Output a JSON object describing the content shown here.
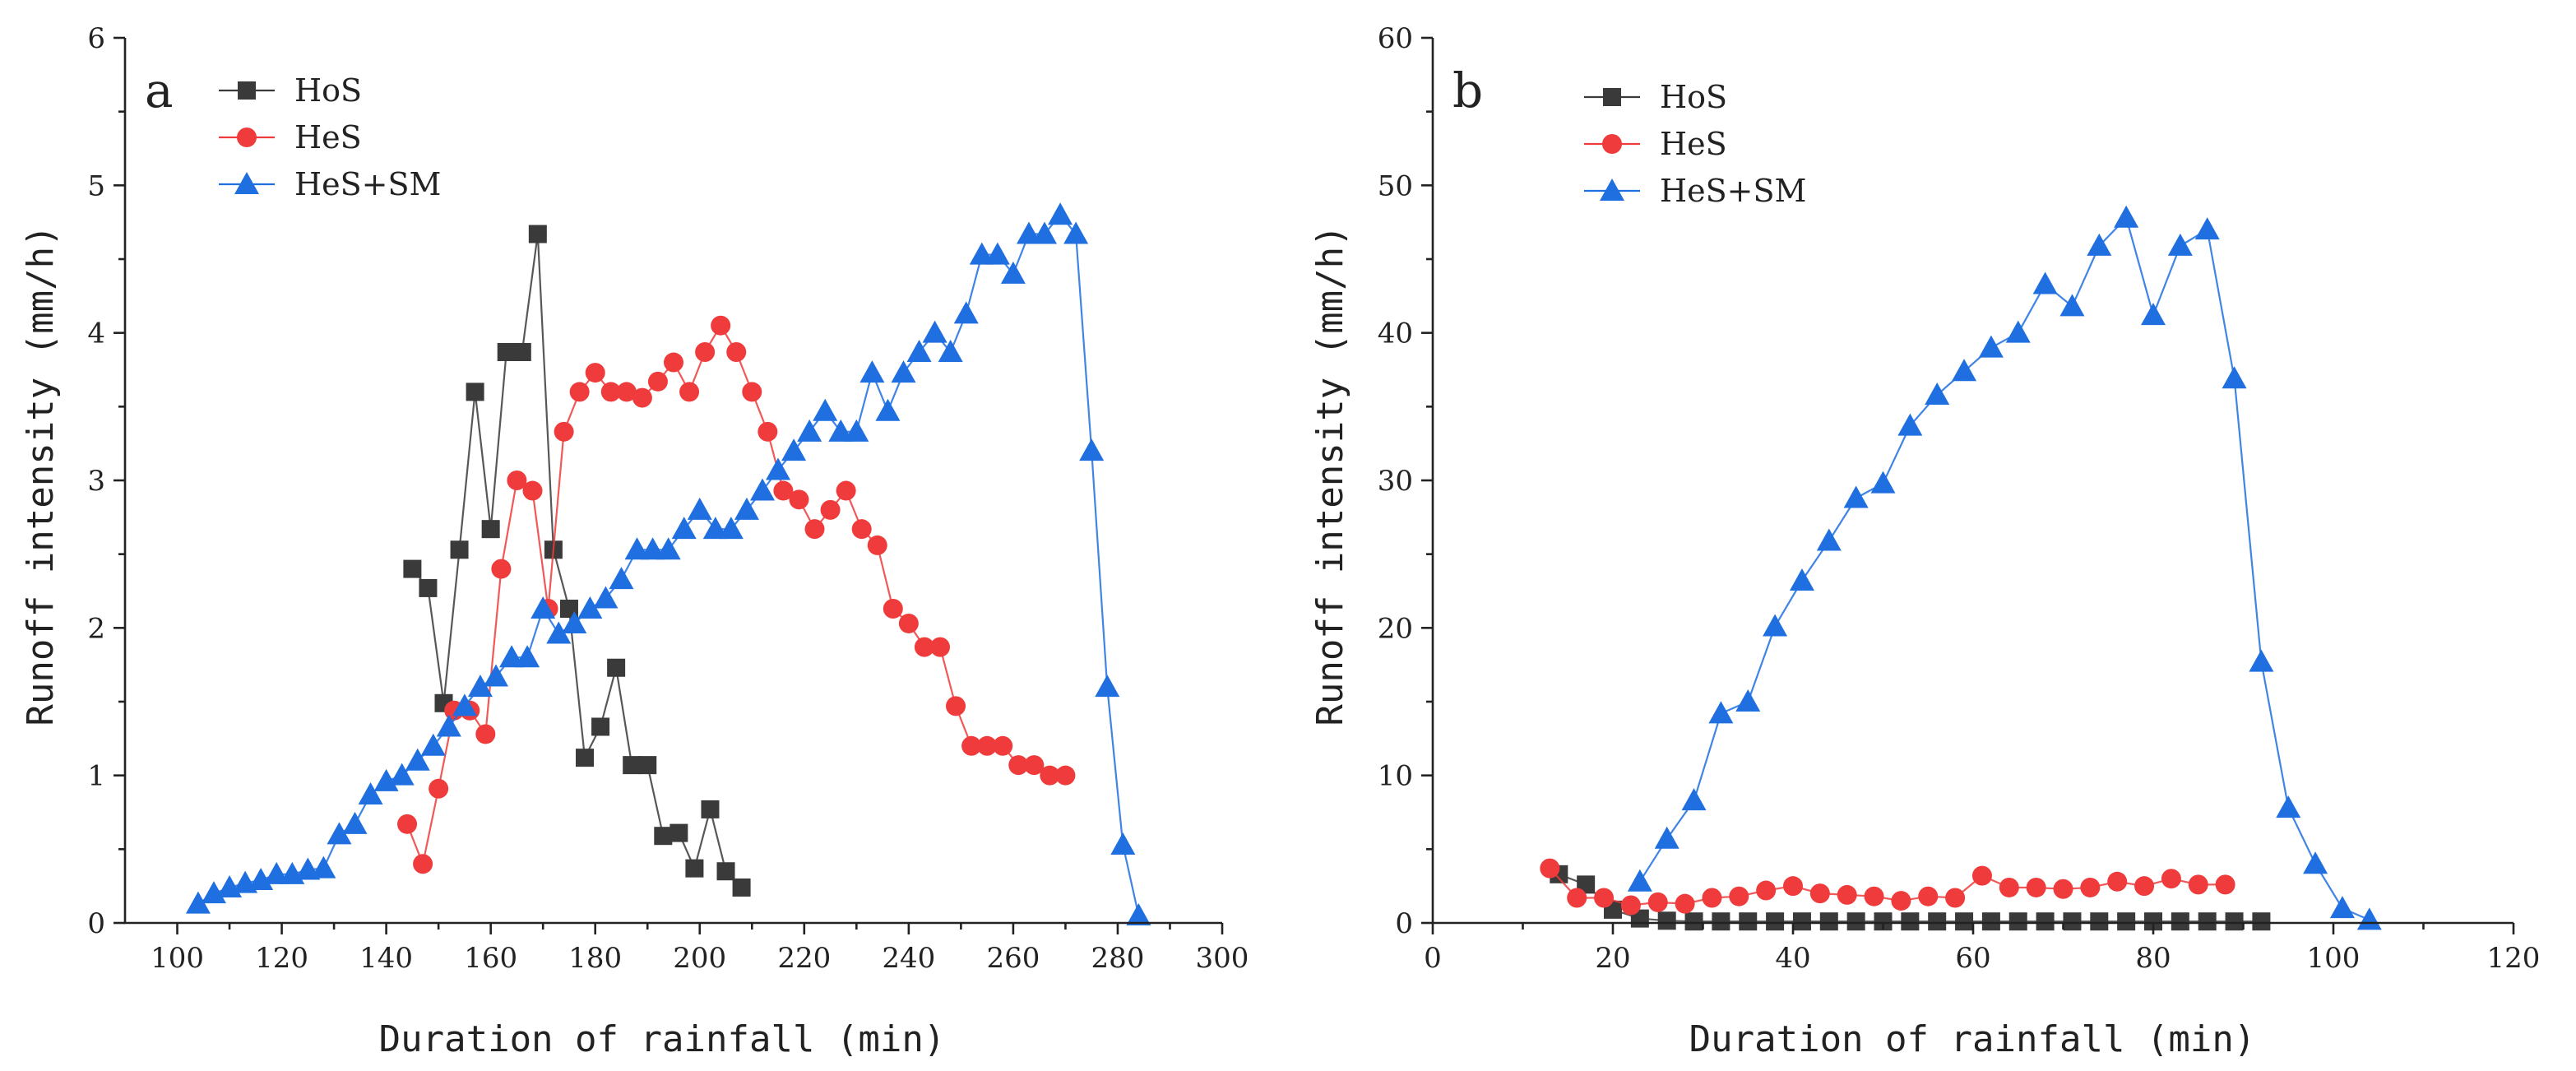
{
  "colors": {
    "HoS": "#3a3a3a",
    "HeS": "#ef3b3b",
    "HeS+SM": "#1f6fe0",
    "axis": "#222222"
  },
  "chart_data": [
    {
      "type": "line",
      "panel_label": "a",
      "xlabel": "Duration of rainfall (min)",
      "ylabel": "Runoff intensity (mm/h)",
      "xlim": [
        90,
        300
      ],
      "ylim": [
        0,
        6
      ],
      "xticks": [
        100,
        120,
        140,
        160,
        180,
        200,
        220,
        240,
        260,
        280,
        300
      ],
      "yticks": [
        0,
        1,
        2,
        3,
        4,
        5,
        6
      ],
      "legend": [
        "HoS",
        "HeS",
        "HeS+SM"
      ],
      "series": [
        {
          "name": "HoS",
          "marker": "square",
          "x": [
            145,
            148,
            151,
            154,
            157,
            160,
            163,
            166,
            169,
            172,
            175,
            178,
            181,
            184,
            187,
            190,
            193,
            196,
            199,
            202,
            205,
            208
          ],
          "y": [
            2.4,
            2.27,
            1.49,
            2.53,
            3.6,
            2.67,
            3.87,
            3.87,
            4.67,
            2.53,
            2.13,
            1.12,
            1.33,
            1.73,
            1.07,
            1.07,
            0.59,
            0.61,
            0.37,
            0.77,
            0.35,
            0.24
          ]
        },
        {
          "name": "HeS",
          "marker": "circle",
          "x": [
            144,
            147,
            150,
            153,
            156,
            159,
            162,
            165,
            168,
            171,
            174,
            177,
            180,
            183,
            186,
            189,
            192,
            195,
            198,
            201,
            204,
            207,
            210,
            213,
            216,
            219,
            222,
            225,
            228,
            231,
            234,
            237,
            240,
            243,
            246,
            249,
            252,
            255,
            258,
            261,
            264,
            267,
            270
          ],
          "y": [
            0.67,
            0.4,
            0.91,
            1.44,
            1.44,
            1.28,
            2.4,
            3.0,
            2.93,
            2.13,
            3.33,
            3.6,
            3.73,
            3.6,
            3.6,
            3.56,
            3.67,
            3.8,
            3.6,
            3.87,
            4.05,
            3.87,
            3.6,
            3.33,
            2.93,
            2.87,
            2.67,
            2.8,
            2.93,
            2.67,
            2.56,
            2.13,
            2.03,
            1.87,
            1.87,
            1.47,
            1.2,
            1.2,
            1.2,
            1.07,
            1.07,
            1.0,
            1.0
          ]
        },
        {
          "name": "HeS+SM",
          "marker": "triangle",
          "x": [
            104,
            107,
            110,
            113,
            116,
            119,
            122,
            125,
            128,
            131,
            134,
            137,
            140,
            143,
            146,
            149,
            152,
            155,
            158,
            161,
            164,
            167,
            170,
            173,
            176,
            179,
            182,
            185,
            188,
            191,
            194,
            197,
            200,
            203,
            206,
            209,
            212,
            215,
            218,
            221,
            224,
            227,
            230,
            233,
            236,
            239,
            242,
            245,
            248,
            251,
            254,
            257,
            260,
            263,
            266,
            269,
            272,
            275,
            278,
            281,
            284
          ],
          "y": [
            0.13,
            0.2,
            0.24,
            0.27,
            0.29,
            0.33,
            0.33,
            0.36,
            0.37,
            0.6,
            0.67,
            0.87,
            0.96,
            1.0,
            1.1,
            1.2,
            1.33,
            1.47,
            1.6,
            1.67,
            1.8,
            1.8,
            2.13,
            1.96,
            2.03,
            2.13,
            2.2,
            2.33,
            2.53,
            2.53,
            2.53,
            2.67,
            2.8,
            2.67,
            2.67,
            2.8,
            2.93,
            3.07,
            3.2,
            3.33,
            3.47,
            3.33,
            3.33,
            3.73,
            3.47,
            3.73,
            3.87,
            4.0,
            3.87,
            4.13,
            4.53,
            4.53,
            4.4,
            4.67,
            4.67,
            4.8,
            4.67,
            3.2,
            1.6,
            0.53,
            0.05
          ]
        }
      ]
    },
    {
      "type": "line",
      "panel_label": "b",
      "xlabel": "Duration of rainfall (min)",
      "ylabel": "Runoff intensity (mm/h)",
      "xlim": [
        0,
        120
      ],
      "ylim": [
        0,
        60
      ],
      "xticks": [
        0,
        20,
        40,
        60,
        80,
        100,
        120
      ],
      "yticks": [
        0,
        10,
        20,
        30,
        40,
        50,
        60
      ],
      "legend": [
        "HoS",
        "HeS",
        "HeS+SM"
      ],
      "series": [
        {
          "name": "HoS",
          "marker": "square",
          "x": [
            14,
            17,
            20,
            23,
            26,
            29,
            32,
            35,
            38,
            41,
            44,
            47,
            50,
            53,
            56,
            59,
            62,
            65,
            68,
            71,
            74,
            77,
            80,
            83,
            86,
            89,
            92
          ],
          "y": [
            3.3,
            2.6,
            0.9,
            0.3,
            0.15,
            0.1,
            0.1,
            0.1,
            0.1,
            0.1,
            0.1,
            0.1,
            0.1,
            0.1,
            0.1,
            0.1,
            0.1,
            0.1,
            0.1,
            0.1,
            0.1,
            0.1,
            0.1,
            0.1,
            0.1,
            0.1,
            0.1
          ]
        },
        {
          "name": "HeS",
          "marker": "circle",
          "x": [
            13,
            16,
            19,
            22,
            25,
            28,
            31,
            34,
            37,
            40,
            43,
            46,
            49,
            52,
            55,
            58,
            61,
            64,
            67,
            70,
            73,
            76,
            79,
            82,
            85,
            88
          ],
          "y": [
            3.7,
            1.7,
            1.7,
            1.2,
            1.4,
            1.3,
            1.7,
            1.8,
            2.2,
            2.5,
            2.0,
            1.9,
            1.8,
            1.5,
            1.8,
            1.7,
            3.2,
            2.4,
            2.4,
            2.3,
            2.4,
            2.8,
            2.5,
            3.0,
            2.6,
            2.6
          ]
        },
        {
          "name": "HeS+SM",
          "marker": "triangle",
          "x": [
            23,
            26,
            29,
            32,
            35,
            38,
            41,
            44,
            47,
            50,
            53,
            56,
            59,
            62,
            65,
            68,
            71,
            74,
            77,
            80,
            83,
            86,
            89,
            92,
            95,
            98,
            101,
            104
          ],
          "y": [
            2.8,
            5.7,
            8.3,
            14.2,
            15.0,
            20.1,
            23.2,
            25.9,
            28.8,
            29.8,
            33.7,
            35.8,
            37.4,
            39.0,
            40.0,
            43.3,
            41.8,
            45.9,
            47.8,
            41.2,
            45.9,
            47.0,
            36.9,
            17.7,
            7.8,
            4.0,
            1.0,
            0.2
          ]
        }
      ]
    }
  ]
}
